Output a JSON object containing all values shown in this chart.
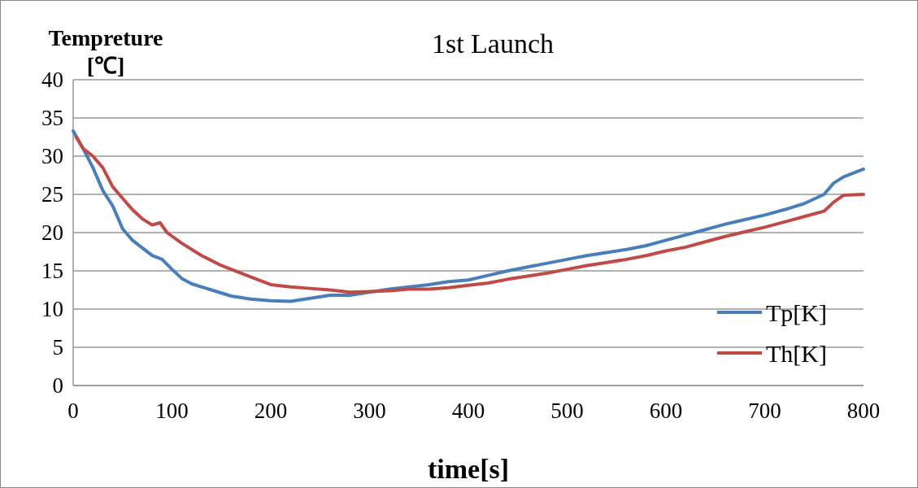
{
  "chart_data": {
    "type": "line",
    "title": "1st Launch",
    "xlabel": "time[s]",
    "ylabel": "Tempreture [℃]",
    "xlim": [
      0,
      800
    ],
    "xticks": [
      0,
      100,
      200,
      300,
      400,
      500,
      600,
      700,
      800
    ],
    "ylim": [
      0,
      40
    ],
    "yticks": [
      0,
      5,
      10,
      15,
      20,
      25,
      30,
      35,
      40
    ],
    "grid": "y",
    "legend": "bottom right",
    "marker": "none",
    "line_style": "solid",
    "series": [
      {
        "name": "Tp[K]",
        "color": "#4a7ebb",
        "x": [
          0,
          10,
          20,
          30,
          40,
          50,
          60,
          70,
          80,
          90,
          100,
          110,
          120,
          140,
          160,
          180,
          200,
          220,
          240,
          260,
          280,
          300,
          320,
          340,
          360,
          380,
          400,
          420,
          440,
          460,
          480,
          500,
          520,
          540,
          560,
          580,
          600,
          620,
          640,
          660,
          680,
          700,
          720,
          740,
          760,
          770,
          780,
          800
        ],
        "values": [
          33.3,
          31,
          28.5,
          25.5,
          23.5,
          20.5,
          19,
          18,
          17,
          16.5,
          15.2,
          14,
          13.3,
          12.5,
          11.7,
          11.3,
          11.1,
          11,
          11.4,
          11.8,
          11.8,
          12.2,
          12.6,
          12.9,
          13.2,
          13.6,
          13.8,
          14.4,
          15,
          15.5,
          16,
          16.5,
          17,
          17.4,
          17.8,
          18.3,
          19,
          19.7,
          20.4,
          21.1,
          21.7,
          22.3,
          23,
          23.8,
          25,
          26.5,
          27.3,
          28.3
        ]
      },
      {
        "name": "Th[K]",
        "color": "#be4b48",
        "x": [
          3,
          10,
          20,
          30,
          40,
          50,
          60,
          70,
          80,
          88,
          95,
          110,
          130,
          150,
          160,
          180,
          200,
          220,
          240,
          260,
          280,
          300,
          320,
          340,
          360,
          380,
          400,
          420,
          440,
          460,
          480,
          500,
          520,
          540,
          560,
          580,
          600,
          620,
          640,
          660,
          680,
          700,
          720,
          740,
          760,
          770,
          780,
          800
        ],
        "values": [
          32.5,
          31,
          30,
          28.5,
          26,
          24.5,
          23,
          21.8,
          21,
          21.3,
          20,
          18.6,
          17,
          15.7,
          15.2,
          14.2,
          13.2,
          12.9,
          12.7,
          12.5,
          12.2,
          12.3,
          12.4,
          12.6,
          12.6,
          12.8,
          13.1,
          13.4,
          13.9,
          14.3,
          14.7,
          15.2,
          15.7,
          16.1,
          16.5,
          17,
          17.6,
          18.1,
          18.8,
          19.5,
          20.1,
          20.7,
          21.4,
          22.1,
          22.8,
          24,
          24.9,
          25
        ]
      }
    ]
  }
}
